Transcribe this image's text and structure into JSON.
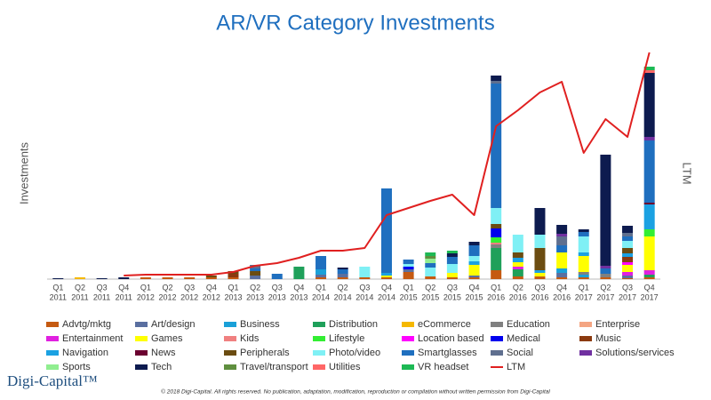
{
  "chart_data": {
    "type": "bar",
    "title": "AR/VR Category Investments",
    "y_label": "Investments",
    "y2_label": "LTM",
    "categories": [
      [
        "Q1",
        "2011"
      ],
      [
        "Q2",
        "2011"
      ],
      [
        "Q3",
        "2011"
      ],
      [
        "Q4",
        "2011"
      ],
      [
        "Q1",
        "2012"
      ],
      [
        "Q2",
        "2012"
      ],
      [
        "Q3",
        "2012"
      ],
      [
        "Q4",
        "2012"
      ],
      [
        "Q1",
        "2013"
      ],
      [
        "Q2",
        "2013"
      ],
      [
        "Q3",
        "2013"
      ],
      [
        "Q4",
        "2013"
      ],
      [
        "Q1",
        "2014"
      ],
      [
        "Q2",
        "2014"
      ],
      [
        "Q3",
        "2014"
      ],
      [
        "Q4",
        "2014"
      ],
      [
        "Q1",
        "2015"
      ],
      [
        "Q2",
        "2015"
      ],
      [
        "Q3",
        "2015"
      ],
      [
        "Q4",
        "2015"
      ],
      [
        "Q1",
        "2016"
      ],
      [
        "Q2",
        "2016"
      ],
      [
        "Q3",
        "2016"
      ],
      [
        "Q4",
        "2016"
      ],
      [
        "Q1",
        "2017"
      ],
      [
        "Q2",
        "2017"
      ],
      [
        "Q3",
        "2017"
      ],
      [
        "Q4",
        "2017"
      ]
    ],
    "ylim": [
      0,
      262
    ],
    "y2lim": [
      0,
      262
    ],
    "stacked": true,
    "series": [
      {
        "name": "Advtg/mktg",
        "color": "#c55a11",
        "values": [
          0,
          0,
          0,
          0,
          2,
          2,
          2,
          2,
          2,
          0,
          0,
          0,
          2,
          2,
          2,
          2,
          8,
          3,
          2,
          2,
          10,
          3,
          3,
          2,
          2,
          2,
          1,
          2
        ]
      },
      {
        "name": "Art/design",
        "color": "#5a6fa0",
        "values": [
          0,
          0,
          0,
          0,
          0,
          0,
          0,
          0,
          0,
          4,
          0,
          0,
          3,
          4,
          0,
          0,
          3,
          0,
          0,
          2,
          0,
          0,
          0,
          5,
          0,
          0,
          3,
          0
        ]
      },
      {
        "name": "Business",
        "color": "#1aa0d8",
        "values": [
          0,
          0,
          0,
          0,
          0,
          0,
          0,
          0,
          0,
          0,
          0,
          0,
          6,
          0,
          0,
          0,
          0,
          0,
          0,
          0,
          0,
          0,
          0,
          5,
          3,
          0,
          0,
          0
        ]
      },
      {
        "name": "Distribution",
        "color": "#1fa05a",
        "values": [
          0,
          0,
          0,
          0,
          0,
          0,
          0,
          0,
          0,
          0,
          0,
          14,
          0,
          0,
          0,
          0,
          0,
          0,
          0,
          0,
          25,
          8,
          0,
          0,
          0,
          0,
          0,
          3
        ]
      },
      {
        "name": "eCommerce",
        "color": "#f5b800",
        "values": [
          0,
          2,
          0,
          0,
          0,
          0,
          0,
          0,
          0,
          0,
          0,
          0,
          0,
          0,
          0,
          0,
          0,
          0,
          0,
          0,
          0,
          0,
          0,
          0,
          0,
          0,
          0,
          0
        ]
      },
      {
        "name": "Education",
        "color": "#808080",
        "values": [
          0,
          0,
          0,
          0,
          0,
          0,
          0,
          0,
          0,
          0,
          0,
          0,
          0,
          0,
          0,
          0,
          0,
          0,
          0,
          0,
          4,
          0,
          0,
          0,
          3,
          4,
          0,
          0
        ]
      },
      {
        "name": "Enterprise",
        "color": "#f4a582",
        "values": [
          0,
          0,
          0,
          0,
          0,
          0,
          0,
          0,
          0,
          0,
          0,
          0,
          0,
          0,
          0,
          0,
          0,
          0,
          0,
          0,
          0,
          0,
          0,
          0,
          0,
          0,
          0,
          0
        ]
      },
      {
        "name": "Entertainment",
        "color": "#e020e0",
        "values": [
          0,
          0,
          0,
          0,
          0,
          0,
          0,
          0,
          0,
          0,
          0,
          0,
          0,
          0,
          0,
          0,
          0,
          0,
          0,
          0,
          0,
          3,
          0,
          0,
          0,
          0,
          4,
          5
        ]
      },
      {
        "name": "Games",
        "color": "#ffff00",
        "values": [
          0,
          0,
          0,
          0,
          0,
          0,
          0,
          0,
          0,
          0,
          0,
          0,
          0,
          0,
          0,
          2,
          0,
          0,
          5,
          12,
          0,
          5,
          4,
          18,
          18,
          0,
          8,
          38
        ]
      },
      {
        "name": "Kids",
        "color": "#f08080",
        "values": [
          0,
          0,
          0,
          0,
          0,
          0,
          0,
          0,
          0,
          0,
          0,
          0,
          0,
          0,
          0,
          0,
          0,
          0,
          0,
          0,
          2,
          0,
          0,
          0,
          0,
          0,
          0,
          0
        ]
      },
      {
        "name": "Lifestyle",
        "color": "#33ee33",
        "values": [
          0,
          0,
          0,
          0,
          0,
          0,
          0,
          0,
          0,
          0,
          0,
          0,
          0,
          0,
          0,
          0,
          0,
          0,
          0,
          0,
          6,
          0,
          0,
          0,
          0,
          0,
          0,
          8
        ]
      },
      {
        "name": "Location based",
        "color": "#ff00ff",
        "values": [
          0,
          0,
          0,
          0,
          0,
          0,
          0,
          0,
          0,
          0,
          0,
          0,
          0,
          0,
          0,
          0,
          0,
          0,
          0,
          0,
          0,
          0,
          0,
          0,
          0,
          0,
          3,
          0
        ]
      },
      {
        "name": "Medical",
        "color": "#0000ee",
        "values": [
          0,
          0,
          0,
          0,
          0,
          0,
          0,
          0,
          0,
          0,
          0,
          0,
          0,
          0,
          0,
          0,
          3,
          0,
          0,
          0,
          10,
          0,
          0,
          0,
          0,
          0,
          0,
          0
        ]
      },
      {
        "name": "Music",
        "color": "#8b3a0f",
        "values": [
          0,
          0,
          0,
          0,
          0,
          0,
          0,
          0,
          4,
          0,
          0,
          0,
          0,
          0,
          0,
          0,
          0,
          0,
          0,
          0,
          0,
          0,
          0,
          0,
          0,
          0,
          6,
          0
        ]
      },
      {
        "name": "Navigation",
        "color": "#1ba1e2",
        "values": [
          0,
          0,
          0,
          0,
          0,
          0,
          0,
          0,
          0,
          0,
          0,
          0,
          0,
          0,
          0,
          3,
          0,
          0,
          0,
          4,
          0,
          5,
          3,
          0,
          4,
          0,
          4,
          28
        ]
      },
      {
        "name": "News",
        "color": "#6b0030",
        "values": [
          0,
          0,
          0,
          0,
          0,
          0,
          0,
          0,
          0,
          0,
          0,
          0,
          0,
          0,
          0,
          0,
          0,
          0,
          0,
          0,
          0,
          0,
          0,
          0,
          0,
          0,
          0,
          2
        ]
      },
      {
        "name": "Peripherals",
        "color": "#6b4c11",
        "values": [
          0,
          0,
          0,
          0,
          0,
          0,
          0,
          2,
          3,
          5,
          0,
          0,
          0,
          0,
          0,
          0,
          0,
          0,
          0,
          0,
          5,
          6,
          25,
          0,
          0,
          0,
          6,
          0
        ]
      },
      {
        "name": "Photo/video",
        "color": "#7ff0f5",
        "values": [
          0,
          0,
          0,
          0,
          0,
          0,
          0,
          0,
          0,
          0,
          0,
          0,
          0,
          0,
          12,
          0,
          3,
          10,
          10,
          6,
          18,
          20,
          15,
          0,
          18,
          0,
          8,
          0
        ]
      },
      {
        "name": "Smartglasses",
        "color": "#1f6fbf",
        "values": [
          0,
          0,
          0,
          0,
          0,
          0,
          0,
          0,
          0,
          3,
          6,
          0,
          15,
          5,
          0,
          95,
          5,
          5,
          8,
          12,
          140,
          0,
          0,
          8,
          5,
          6,
          5,
          70
        ]
      },
      {
        "name": "Social",
        "color": "#5f6f8f",
        "values": [
          0,
          0,
          0,
          0,
          0,
          0,
          0,
          0,
          0,
          4,
          0,
          0,
          0,
          0,
          0,
          0,
          0,
          0,
          0,
          0,
          3,
          0,
          0,
          10,
          0,
          0,
          4,
          0
        ]
      },
      {
        "name": "Solutions/services",
        "color": "#7030a0",
        "values": [
          0,
          0,
          0,
          0,
          0,
          0,
          0,
          0,
          0,
          0,
          0,
          0,
          0,
          0,
          0,
          0,
          0,
          0,
          0,
          0,
          0,
          0,
          0,
          3,
          0,
          3,
          0,
          4
        ]
      },
      {
        "name": "Sports",
        "color": "#90ee90",
        "values": [
          0,
          0,
          0,
          0,
          0,
          0,
          0,
          0,
          0,
          0,
          0,
          0,
          0,
          0,
          0,
          0,
          0,
          5,
          0,
          0,
          0,
          0,
          0,
          0,
          0,
          0,
          0,
          0
        ]
      },
      {
        "name": "Tech",
        "color": "#0d1b4f",
        "values": [
          1,
          0,
          1,
          2,
          0,
          0,
          0,
          0,
          0,
          0,
          0,
          0,
          0,
          2,
          0,
          0,
          0,
          0,
          4,
          4,
          6,
          0,
          30,
          10,
          3,
          125,
          8,
          72
        ]
      },
      {
        "name": "Travel/transport",
        "color": "#5f8f3f",
        "values": [
          0,
          0,
          0,
          0,
          0,
          0,
          0,
          0,
          0,
          0,
          0,
          0,
          0,
          0,
          0,
          0,
          0,
          3,
          0,
          0,
          0,
          0,
          0,
          0,
          0,
          0,
          0,
          0
        ]
      },
      {
        "name": "Utilities",
        "color": "#ff6666",
        "values": [
          0,
          0,
          0,
          0,
          0,
          0,
          0,
          0,
          0,
          0,
          0,
          0,
          0,
          0,
          0,
          0,
          0,
          0,
          0,
          0,
          0,
          0,
          0,
          0,
          0,
          0,
          0,
          3
        ]
      },
      {
        "name": "VR headset",
        "color": "#1db954",
        "values": [
          0,
          0,
          0,
          0,
          0,
          0,
          0,
          0,
          0,
          0,
          0,
          0,
          0,
          0,
          0,
          0,
          0,
          4,
          3,
          0,
          0,
          0,
          0,
          0,
          0,
          0,
          0,
          4
        ]
      },
      {
        "name": "LTM",
        "color": "#e02020",
        "type": "line",
        "axis": "y2",
        "values": [
          null,
          null,
          null,
          4,
          5,
          5,
          5,
          5,
          8,
          15,
          18,
          24,
          32,
          32,
          35,
          72,
          80,
          88,
          95,
          72,
          172,
          190,
          210,
          222,
          142,
          180,
          160,
          255
        ]
      }
    ]
  },
  "footer": {
    "logo": "Digi-Capital™",
    "copyright": "© 2018 Digi-Capital. All rights reserved. No publication, adaptation, modification, reproduction or compilation without written permission from Digi-Capital"
  }
}
